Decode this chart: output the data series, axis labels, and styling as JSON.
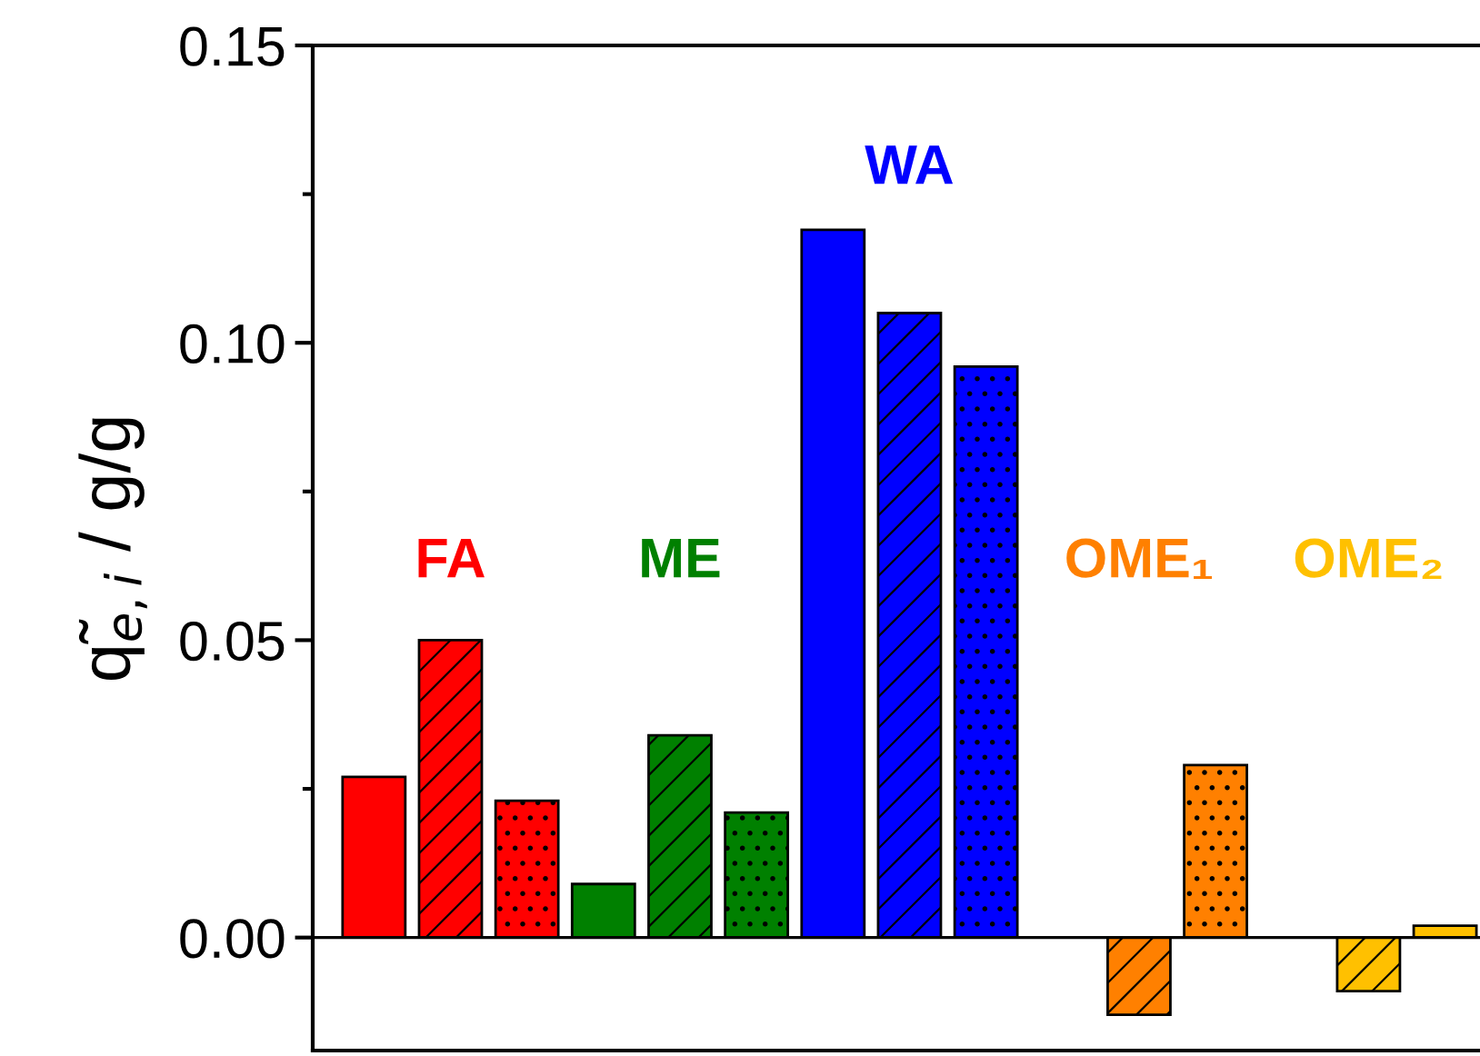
{
  "chart_data": {
    "type": "bar",
    "ylabel": "q̃$_{e,i}$ / g/g",
    "categories": [
      "FA",
      "ME",
      "WA",
      "OME₁",
      "OME₂"
    ],
    "series": [
      {
        "colors": [
          "#ff0000",
          "#008000",
          "#0000ff",
          "#ff8000",
          "#ffc000"
        ],
        "values": [
          0.027,
          0.009,
          0.119,
          null,
          null
        ]
      },
      {
        "colors": [
          "#ff0000",
          "#008000",
          "#0000ff",
          "#ff8000",
          "#ffc000"
        ],
        "values": [
          0.05,
          0.034,
          0.105,
          -0.013,
          -0.009
        ]
      },
      {
        "colors": [
          "#ff0000",
          "#008000",
          "#0000ff",
          "#ff8000",
          "#ffc000"
        ],
        "values": [
          0.023,
          0.021,
          0.096,
          0.029,
          0.002
        ]
      }
    ],
    "ylim": [
      -0.019,
      0.15
    ],
    "yticks": [
      {
        "value": 0,
        "label": "0.00"
      },
      {
        "value": 0.05,
        "label": "0.05"
      },
      {
        "value": 0.1,
        "label": "0.10"
      },
      {
        "value": 0.15,
        "label": "0.15"
      }
    ],
    "ref_lines": [
      {
        "axis": "y",
        "value": 0,
        "color": "#000000"
      }
    ],
    "grid": false,
    "legend": false
  }
}
